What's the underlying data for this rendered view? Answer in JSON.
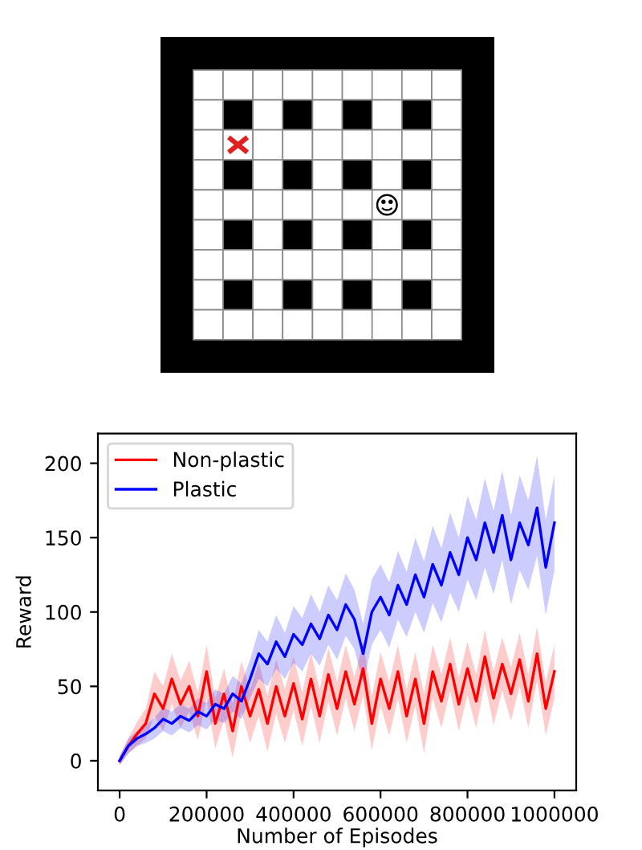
{
  "chart_data": {
    "type": "line",
    "xlabel": "Number of Episodes",
    "ylabel": "Reward",
    "x": [
      0,
      20000,
      40000,
      60000,
      80000,
      100000,
      120000,
      140000,
      160000,
      180000,
      200000,
      220000,
      240000,
      260000,
      280000,
      300000,
      320000,
      340000,
      360000,
      380000,
      400000,
      420000,
      440000,
      460000,
      480000,
      500000,
      520000,
      540000,
      560000,
      580000,
      600000,
      620000,
      640000,
      660000,
      680000,
      700000,
      720000,
      740000,
      760000,
      780000,
      800000,
      820000,
      840000,
      860000,
      880000,
      900000,
      920000,
      940000,
      960000,
      980000,
      1000000
    ],
    "series": [
      {
        "name": "Non-plastic",
        "color": "#ff0000",
        "values": [
          0,
          10,
          18,
          25,
          45,
          35,
          55,
          38,
          50,
          30,
          60,
          25,
          45,
          20,
          50,
          30,
          48,
          25,
          50,
          30,
          52,
          28,
          55,
          30,
          58,
          35,
          60,
          38,
          62,
          25,
          55,
          35,
          60,
          30,
          55,
          25,
          60,
          40,
          65,
          38,
          62,
          40,
          70,
          42,
          65,
          45,
          68,
          40,
          72,
          35,
          60
        ],
        "lower": [
          -3,
          5,
          10,
          15,
          30,
          20,
          38,
          22,
          33,
          14,
          42,
          8,
          28,
          2,
          33,
          12,
          30,
          6,
          32,
          12,
          34,
          10,
          37,
          12,
          40,
          17,
          42,
          20,
          44,
          7,
          37,
          17,
          42,
          12,
          37,
          5,
          42,
          22,
          47,
          20,
          44,
          22,
          52,
          24,
          47,
          27,
          50,
          22,
          54,
          17,
          42
        ],
        "upper": [
          3,
          15,
          26,
          35,
          60,
          50,
          72,
          54,
          67,
          46,
          78,
          42,
          62,
          38,
          67,
          48,
          66,
          44,
          68,
          48,
          70,
          46,
          73,
          48,
          76,
          53,
          78,
          56,
          80,
          43,
          73,
          53,
          78,
          48,
          73,
          45,
          78,
          58,
          83,
          56,
          80,
          58,
          88,
          60,
          83,
          63,
          86,
          58,
          90,
          53,
          78
        ]
      },
      {
        "name": "Plastic",
        "color": "#0000ff",
        "values": [
          0,
          10,
          15,
          18,
          22,
          28,
          25,
          30,
          27,
          33,
          30,
          38,
          35,
          45,
          40,
          55,
          72,
          65,
          80,
          70,
          85,
          78,
          92,
          82,
          98,
          88,
          105,
          95,
          72,
          100,
          110,
          98,
          118,
          105,
          125,
          110,
          132,
          118,
          140,
          125,
          150,
          135,
          160,
          140,
          165,
          135,
          160,
          145,
          170,
          130,
          160
        ],
        "lower": [
          -3,
          5,
          10,
          12,
          15,
          20,
          17,
          22,
          19,
          24,
          21,
          28,
          25,
          33,
          28,
          42,
          55,
          50,
          62,
          55,
          66,
          60,
          72,
          64,
          78,
          68,
          84,
          75,
          52,
          78,
          88,
          76,
          95,
          83,
          100,
          86,
          106,
          93,
          113,
          100,
          122,
          108,
          130,
          112,
          135,
          105,
          128,
          115,
          138,
          98,
          128
        ],
        "upper": [
          3,
          15,
          20,
          24,
          29,
          36,
          33,
          38,
          35,
          42,
          39,
          48,
          45,
          57,
          52,
          68,
          88,
          80,
          98,
          86,
          104,
          96,
          112,
          100,
          118,
          108,
          126,
          115,
          92,
          122,
          132,
          120,
          141,
          127,
          150,
          134,
          158,
          143,
          167,
          150,
          178,
          162,
          190,
          168,
          195,
          165,
          192,
          175,
          205,
          162,
          192
        ]
      }
    ],
    "xlim": [
      -50000,
      1050000
    ],
    "ylim": [
      -20,
      220
    ],
    "xticks": [
      0,
      200000,
      400000,
      600000,
      800000,
      1000000
    ],
    "yticks": [
      0,
      50,
      100,
      150,
      200
    ],
    "legend": "top left",
    "grid": false,
    "marker": "none",
    "line_style": "solid"
  }
}
